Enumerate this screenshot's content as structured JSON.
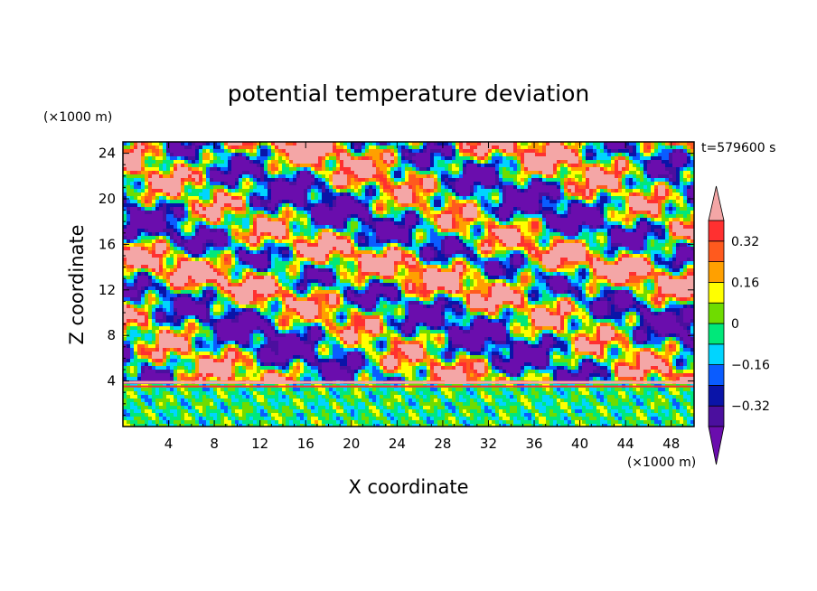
{
  "chart_data": {
    "type": "heatmap",
    "title": "potential temperature deviation",
    "xlabel": "X coordinate",
    "ylabel": "Z coordinate",
    "x_unit": "(×1000 m)",
    "y_unit": "(×1000 m)",
    "time_label": "t=579600 s",
    "xlim": [
      0,
      50
    ],
    "ylim": [
      0,
      25
    ],
    "x_ticks": [
      4,
      8,
      12,
      16,
      20,
      24,
      28,
      32,
      36,
      40,
      44,
      48
    ],
    "y_ticks": [
      4,
      8,
      12,
      16,
      20,
      24
    ],
    "colorbar": {
      "levels": [
        -0.4,
        -0.32,
        -0.24,
        -0.16,
        -0.08,
        0,
        0.08,
        0.16,
        0.24,
        0.32,
        0.4
      ],
      "tick_labels": [
        "0.32",
        "0.16",
        "0",
        "−0.16",
        "−0.32"
      ],
      "tick_values": [
        0.32,
        0.16,
        0,
        -0.16,
        -0.32
      ],
      "colors": [
        "#6a0dad",
        "#4b0f9e",
        "#0a14a8",
        "#0a5cff",
        "#00d5ff",
        "#00e87a",
        "#6fdc00",
        "#ffff00",
        "#ffa000",
        "#ff5a1e",
        "#ff3030",
        "#f4a6a6"
      ]
    }
  }
}
